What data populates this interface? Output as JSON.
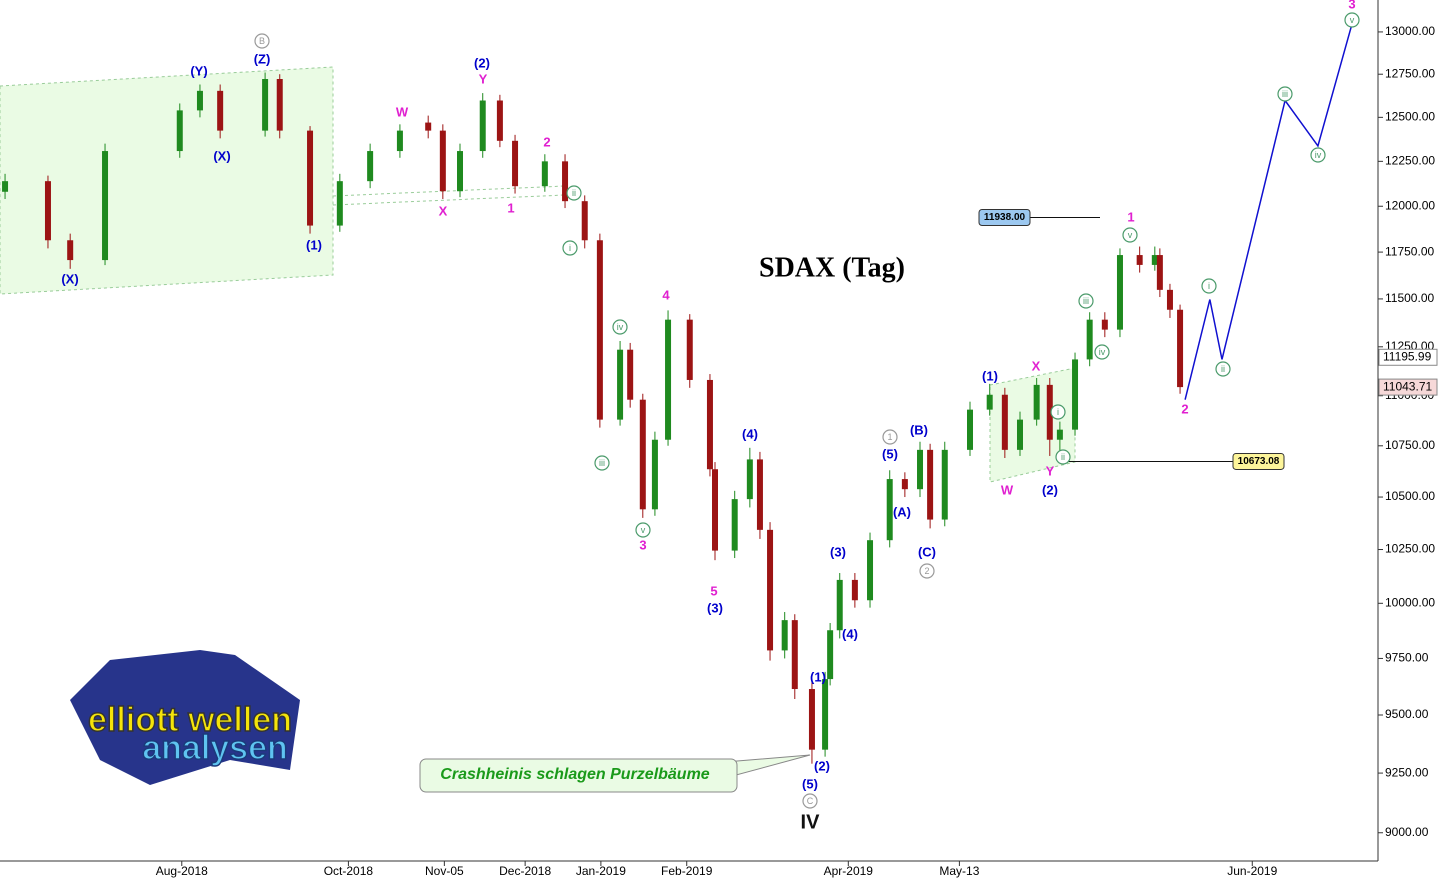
{
  "chart_data": {
    "type": "candlestick",
    "title": "SDAX (Tag)",
    "log_scale": true,
    "ylim": [
      8884,
      13192
    ],
    "yticks": [
      {
        "value": 9000,
        "label": "9000.00"
      },
      {
        "value": 9250,
        "label": "9250.00"
      },
      {
        "value": 9500,
        "label": "9500.00"
      },
      {
        "value": 9750,
        "label": "9750.00"
      },
      {
        "value": 10000,
        "label": "10000.00"
      },
      {
        "value": 10250,
        "label": "10250.00"
      },
      {
        "value": 10500,
        "label": "10500.00"
      },
      {
        "value": 10750,
        "label": "10750.00"
      },
      {
        "value": 11000,
        "label": "11000.00"
      },
      {
        "value": 11250,
        "label": "11250.00"
      },
      {
        "value": 11500,
        "label": "11500.00"
      },
      {
        "value": 11750,
        "label": "11750.00"
      },
      {
        "value": 12000,
        "label": "12000.00"
      },
      {
        "value": 12250,
        "label": "12250.00"
      },
      {
        "value": 12500,
        "label": "12500.00"
      },
      {
        "value": 12750,
        "label": "12750.00"
      },
      {
        "value": 13000,
        "label": "13000.00"
      }
    ],
    "xlim": [
      0,
      272.9
    ],
    "xticks": [
      {
        "value": 36,
        "label": "Aug-2018"
      },
      {
        "value": 69,
        "label": "Oct-2018"
      },
      {
        "value": 88,
        "label": "Nov-05"
      },
      {
        "value": 104,
        "label": "Dec-2018"
      },
      {
        "value": 119,
        "label": "Jan-2019"
      },
      {
        "value": 136,
        "label": "Feb-2019"
      },
      {
        "value": 168,
        "label": "Apr-2019"
      },
      {
        "value": 190,
        "label": "May-13"
      },
      {
        "value": 248,
        "label": "Jun-2019"
      }
    ],
    "up_color": "#1f8a1f",
    "down_color": "#9c1414",
    "x": [
      1,
      9.5,
      13.9,
      20.8,
      35.6,
      39.6,
      43.6,
      52.5,
      55.4,
      61.4,
      67.3,
      73.3,
      79.2,
      84.8,
      87.7,
      91.1,
      95.6,
      99,
      102,
      107.9,
      111.9,
      115.8,
      118.8,
      122.8,
      124.8,
      127.3,
      129.7,
      132.3,
      136.6,
      140.6,
      141.6,
      145.5,
      148.5,
      150.5,
      152.5,
      155.4,
      157.4,
      160.8,
      163.4,
      164.4,
      166.3,
      169.3,
      172.3,
      176.2,
      179.2,
      182.2,
      184.2,
      187.1,
      192.1,
      196,
      199,
      202,
      205.3,
      207.9,
      209.9,
      212.9,
      215.8,
      218.8,
      221.8,
      225.7,
      228.7,
      229.7,
      231.7,
      233.7
    ],
    "open": [
      12080,
      12139,
      11814,
      11707,
      12308,
      12540,
      12653,
      12424,
      12722,
      12424,
      11894,
      12139,
      12308,
      12470,
      12424,
      12083,
      12308,
      12597,
      12366,
      12111,
      12250,
      12028,
      11814,
      10880,
      11235,
      10980,
      10441,
      10780,
      11391,
      11080,
      10635,
      10245,
      10490,
      10683,
      10343,
      9786,
      9923,
      9614,
      9350,
      9658,
      9877,
      10108,
      10014,
      10294,
      10587,
      10538,
      10730,
      10392,
      10730,
      10930,
      11005,
      10730,
      10880,
      11055,
      10780,
      10830,
      11185,
      11391,
      11339,
      11734,
      11681,
      11734,
      11548,
      11443
    ],
    "high": [
      12180,
      12170,
      11850,
      12350,
      12580,
      12690,
      12690,
      12760,
      12750,
      12450,
      12180,
      12350,
      12460,
      12510,
      12460,
      12350,
      12640,
      12630,
      12400,
      12290,
      12290,
      12060,
      11850,
      11280,
      11270,
      11010,
      10820,
      11440,
      11420,
      11110,
      10670,
      10530,
      10740,
      10720,
      10380,
      9960,
      9950,
      9650,
      9690,
      9910,
      10140,
      10140,
      10330,
      10630,
      10620,
      10770,
      10760,
      10770,
      10970,
      11060,
      11040,
      10920,
      11090,
      11090,
      10870,
      11220,
      11430,
      11430,
      11770,
      11780,
      11780,
      11770,
      11580,
      11470
    ],
    "low": [
      12040,
      11770,
      11660,
      11680,
      12270,
      12500,
      12380,
      12390,
      12380,
      11850,
      11860,
      12100,
      12270,
      12380,
      12040,
      12050,
      12270,
      12330,
      12070,
      12080,
      11990,
      11770,
      10840,
      10850,
      10940,
      10400,
      10410,
      10750,
      11040,
      10600,
      10200,
      10210,
      10450,
      10300,
      9740,
      9750,
      9570,
      9290,
      9320,
      9630,
      9840,
      9980,
      9980,
      10260,
      10500,
      10500,
      10350,
      10360,
      10700,
      10900,
      10690,
      10700,
      10850,
      10700,
      10720,
      10800,
      11150,
      11300,
      11300,
      11640,
      11650,
      11510,
      11400,
      11010
    ],
    "close": [
      12139,
      11814,
      11707,
      12308,
      12540,
      12653,
      12424,
      12722,
      12424,
      11894,
      12139,
      12308,
      12424,
      12424,
      12083,
      12308,
      12597,
      12366,
      12111,
      12250,
      12028,
      11814,
      10880,
      11235,
      10980,
      10441,
      10780,
      11391,
      11080,
      10635,
      10245,
      10490,
      10683,
      10343,
      9786,
      9923,
      9614,
      9350,
      9658,
      9877,
      10108,
      10014,
      10294,
      10587,
      10538,
      10730,
      10392,
      10730,
      10930,
      11005,
      10730,
      10880,
      11055,
      10780,
      10830,
      11185,
      11391,
      11339,
      11734,
      11681,
      11734,
      11548,
      11443,
      11043.71
    ],
    "forecast": {
      "color": "#1010d0",
      "x": [
        234.7,
        239.6,
        242,
        254.5,
        261,
        267.7
      ],
      "values": [
        10980,
        11497,
        11185,
        12597,
        12337,
        13042
      ]
    },
    "price_markers": [
      {
        "value": 11195.99,
        "label": "11195.99",
        "color": "#ffffff"
      },
      {
        "value": 11043.71,
        "label": "11043.71",
        "color": "#f6d8d8"
      }
    ],
    "levels": [
      {
        "value": 11938,
        "label": "11938.00",
        "color": "#9cc8f0"
      },
      {
        "value": 10673.08,
        "label": "10673.08",
        "color": "#fdf59a"
      }
    ],
    "annotations": [
      {
        "text": "(Y)",
        "color": "#0000cc"
      },
      {
        "text": "(Z)",
        "color": "#0000cc"
      },
      {
        "text": "(X)",
        "color": "#0000cc"
      },
      {
        "text": "(X)",
        "color": "#0000cc"
      },
      {
        "text": "(1)",
        "color": "#0000cc"
      },
      {
        "text": "(2)",
        "color": "#0000cc"
      },
      {
        "text": "(1)",
        "color": "#0000cc"
      },
      {
        "text": "(2)",
        "color": "#0000cc"
      },
      {
        "text": "(A)",
        "color": "#0000cc"
      },
      {
        "text": "(B)",
        "color": "#0000cc"
      },
      {
        "text": "(C)",
        "color": "#0000cc"
      },
      {
        "text": "(5)",
        "color": "#0000cc"
      },
      {
        "text": "(3)",
        "color": "#0000cc"
      },
      {
        "text": "(4)",
        "color": "#0000cc"
      },
      {
        "text": "(3)",
        "color": "#0000cc"
      },
      {
        "text": "(4)",
        "color": "#0000cc"
      },
      {
        "text": "(1)",
        "color": "#0000cc"
      },
      {
        "text": "(2)",
        "color": "#0000cc"
      },
      {
        "text": "(5)",
        "color": "#0000cc"
      },
      {
        "text": "W",
        "color": "#e020d0"
      },
      {
        "text": "Y",
        "color": "#e020d0"
      },
      {
        "text": "X",
        "color": "#e020d0"
      },
      {
        "text": "1",
        "color": "#e020d0"
      },
      {
        "text": "2",
        "color": "#e020d0"
      },
      {
        "text": "4",
        "color": "#e020d0"
      },
      {
        "text": "3",
        "color": "#e020d0"
      },
      {
        "text": "5",
        "color": "#e020d0"
      },
      {
        "text": "X",
        "color": "#e020d0"
      },
      {
        "text": "W",
        "color": "#e020d0"
      },
      {
        "text": "Y",
        "color": "#e020d0"
      },
      {
        "text": "1",
        "color": "#e020d0"
      },
      {
        "text": "2",
        "color": "#e020d0"
      },
      {
        "text": "3",
        "color": "#e020d0"
      },
      {
        "text": "ii",
        "color": "#4a9a6a",
        "circled": true
      },
      {
        "text": "i",
        "color": "#4a9a6a",
        "circled": true
      },
      {
        "text": "iv",
        "color": "#4a9a6a",
        "circled": true
      },
      {
        "text": "iii",
        "color": "#4a9a6a",
        "circled": true
      },
      {
        "text": "v",
        "color": "#4a9a6a",
        "circled": true
      },
      {
        "text": "iii",
        "color": "#4a9a6a",
        "circled": true
      },
      {
        "text": "iv",
        "color": "#4a9a6a",
        "circled": true
      },
      {
        "text": "i",
        "color": "#4a9a6a",
        "circled": true
      },
      {
        "text": "ii",
        "color": "#4a9a6a",
        "circled": true
      },
      {
        "text": "v",
        "color": "#4a9a6a",
        "circled": true
      },
      {
        "text": "i",
        "color": "#4a9a6a",
        "circled": true
      },
      {
        "text": "ii",
        "color": "#4a9a6a",
        "circled": true
      },
      {
        "text": "iii",
        "color": "#4a9a6a",
        "circled": true
      },
      {
        "text": "iv",
        "color": "#4a9a6a",
        "circled": true
      },
      {
        "text": "v",
        "color": "#4a9a6a",
        "circled": true
      },
      {
        "text": "B",
        "color": "#999999",
        "circled": true
      },
      {
        "text": "1",
        "color": "#999999",
        "circled": true
      },
      {
        "text": "2",
        "color": "#999999",
        "circled": true
      },
      {
        "text": "C",
        "color": "#999999",
        "circled": true
      },
      {
        "text": "IV",
        "color": "#111111"
      }
    ],
    "callout": "Crashheinis schlagen Purzelbäume",
    "logo": [
      "elliott wellen",
      "analysen"
    ]
  }
}
